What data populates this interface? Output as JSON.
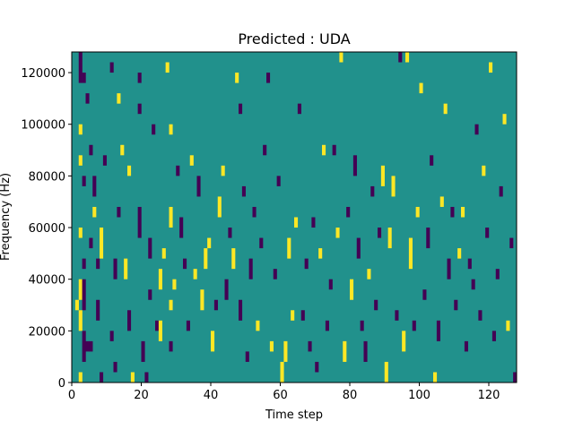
{
  "chart_data": {
    "type": "heatmap",
    "title": "Predicted : UDA",
    "xlabel": "Time step",
    "ylabel": "Frequency (Hz)",
    "xlim": [
      0,
      128
    ],
    "ylim": [
      0,
      128000
    ],
    "x_ticks": [
      0,
      20,
      40,
      60,
      80,
      100,
      120
    ],
    "y_ticks": [
      0,
      20000,
      40000,
      60000,
      80000,
      100000,
      120000
    ],
    "grid": false,
    "legend": "none",
    "value_levels": [
      -1,
      0,
      1
    ],
    "colors": {
      "-1": "#440154",
      "0": "#21918c",
      "1": "#fde725"
    },
    "background_value": 0,
    "bin_width": 1,
    "bin_height": 4000,
    "cells": [
      {
        "t": 2,
        "f_start": 124000,
        "f_end": 128000,
        "v": -1
      },
      {
        "t": 2,
        "f_start": 116000,
        "f_end": 124000,
        "v": -1
      },
      {
        "t": 3,
        "f_start": 116000,
        "f_end": 120000,
        "v": -1
      },
      {
        "t": 4,
        "f_start": 108000,
        "f_end": 112000,
        "v": -1
      },
      {
        "t": 2,
        "f_start": 96000,
        "f_end": 100000,
        "v": 1
      },
      {
        "t": 2,
        "f_start": 84000,
        "f_end": 88000,
        "v": 1
      },
      {
        "t": 3,
        "f_start": 76000,
        "f_end": 80000,
        "v": -1
      },
      {
        "t": 5,
        "f_start": 88000,
        "f_end": 92000,
        "v": -1
      },
      {
        "t": 6,
        "f_start": 72000,
        "f_end": 80000,
        "v": -1
      },
      {
        "t": 6,
        "f_start": 64000,
        "f_end": 68000,
        "v": 1
      },
      {
        "t": 5,
        "f_start": 52000,
        "f_end": 56000,
        "v": -1
      },
      {
        "t": 8,
        "f_start": 48000,
        "f_end": 60000,
        "v": 1
      },
      {
        "t": 2,
        "f_start": 56000,
        "f_end": 60000,
        "v": 1
      },
      {
        "t": 3,
        "f_start": 44000,
        "f_end": 48000,
        "v": -1
      },
      {
        "t": 2,
        "f_start": 32000,
        "f_end": 40000,
        "v": 1
      },
      {
        "t": 3,
        "f_start": 28000,
        "f_end": 40000,
        "v": -1
      },
      {
        "t": 1,
        "f_start": 28000,
        "f_end": 32000,
        "v": 1
      },
      {
        "t": 2,
        "f_start": 20000,
        "f_end": 28000,
        "v": 1
      },
      {
        "t": 3,
        "f_start": 8000,
        "f_end": 20000,
        "v": -1
      },
      {
        "t": 4,
        "f_start": 12000,
        "f_end": 16000,
        "v": -1
      },
      {
        "t": 5,
        "f_start": 12000,
        "f_end": 16000,
        "v": -1
      },
      {
        "t": 2,
        "f_start": 0,
        "f_end": 4000,
        "v": 1
      },
      {
        "t": 8,
        "f_start": 0,
        "f_end": 4000,
        "v": -1
      },
      {
        "t": 7,
        "f_start": 24000,
        "f_end": 32000,
        "v": -1
      },
      {
        "t": 7,
        "f_start": 44000,
        "f_end": 48000,
        "v": -1
      },
      {
        "t": 9,
        "f_start": 84000,
        "f_end": 88000,
        "v": -1
      },
      {
        "t": 11,
        "f_start": 120000,
        "f_end": 124000,
        "v": -1
      },
      {
        "t": 13,
        "f_start": 108000,
        "f_end": 112000,
        "v": 1
      },
      {
        "t": 14,
        "f_start": 88000,
        "f_end": 92000,
        "v": 1
      },
      {
        "t": 13,
        "f_start": 64000,
        "f_end": 68000,
        "v": -1
      },
      {
        "t": 12,
        "f_start": 40000,
        "f_end": 48000,
        "v": -1
      },
      {
        "t": 11,
        "f_start": 16000,
        "f_end": 20000,
        "v": -1
      },
      {
        "t": 12,
        "f_start": 4000,
        "f_end": 8000,
        "v": -1
      },
      {
        "t": 15,
        "f_start": 40000,
        "f_end": 48000,
        "v": 1
      },
      {
        "t": 16,
        "f_start": 20000,
        "f_end": 28000,
        "v": -1
      },
      {
        "t": 17,
        "f_start": 0,
        "f_end": 4000,
        "v": 1
      },
      {
        "t": 16,
        "f_start": 80000,
        "f_end": 84000,
        "v": 1
      },
      {
        "t": 19,
        "f_start": 116000,
        "f_end": 120000,
        "v": -1
      },
      {
        "t": 19,
        "f_start": 104000,
        "f_end": 108000,
        "v": -1
      },
      {
        "t": 19,
        "f_start": 56000,
        "f_end": 68000,
        "v": -1
      },
      {
        "t": 20,
        "f_start": 8000,
        "f_end": 16000,
        "v": -1
      },
      {
        "t": 21,
        "f_start": 0,
        "f_end": 4000,
        "v": -1
      },
      {
        "t": 22,
        "f_start": 48000,
        "f_end": 56000,
        "v": -1
      },
      {
        "t": 22,
        "f_start": 32000,
        "f_end": 36000,
        "v": -1
      },
      {
        "t": 23,
        "f_start": 96000,
        "f_end": 100000,
        "v": -1
      },
      {
        "t": 24,
        "f_start": 20000,
        "f_end": 24000,
        "v": -1
      },
      {
        "t": 25,
        "f_start": 16000,
        "f_end": 24000,
        "v": 1
      },
      {
        "t": 25,
        "f_start": 36000,
        "f_end": 44000,
        "v": 1
      },
      {
        "t": 26,
        "f_start": 48000,
        "f_end": 52000,
        "v": 1
      },
      {
        "t": 27,
        "f_start": 120000,
        "f_end": 124000,
        "v": 1
      },
      {
        "t": 28,
        "f_start": 96000,
        "f_end": 100000,
        "v": 1
      },
      {
        "t": 28,
        "f_start": 60000,
        "f_end": 68000,
        "v": 1
      },
      {
        "t": 28,
        "f_start": 28000,
        "f_end": 32000,
        "v": 1
      },
      {
        "t": 28,
        "f_start": 12000,
        "f_end": 16000,
        "v": -1
      },
      {
        "t": 29,
        "f_start": 36000,
        "f_end": 40000,
        "v": 1
      },
      {
        "t": 30,
        "f_start": 80000,
        "f_end": 84000,
        "v": -1
      },
      {
        "t": 31,
        "f_start": 56000,
        "f_end": 64000,
        "v": -1
      },
      {
        "t": 32,
        "f_start": 44000,
        "f_end": 48000,
        "v": -1
      },
      {
        "t": 33,
        "f_start": 20000,
        "f_end": 24000,
        "v": -1
      },
      {
        "t": 34,
        "f_start": 84000,
        "f_end": 88000,
        "v": 1
      },
      {
        "t": 35,
        "f_start": 40000,
        "f_end": 44000,
        "v": 1
      },
      {
        "t": 36,
        "f_start": 72000,
        "f_end": 80000,
        "v": -1
      },
      {
        "t": 37,
        "f_start": 28000,
        "f_end": 36000,
        "v": 1
      },
      {
        "t": 38,
        "f_start": 44000,
        "f_end": 52000,
        "v": 1
      },
      {
        "t": 39,
        "f_start": 52000,
        "f_end": 56000,
        "v": 1
      },
      {
        "t": 40,
        "f_start": 12000,
        "f_end": 20000,
        "v": 1
      },
      {
        "t": 41,
        "f_start": 28000,
        "f_end": 32000,
        "v": -1
      },
      {
        "t": 42,
        "f_start": 64000,
        "f_end": 72000,
        "v": 1
      },
      {
        "t": 43,
        "f_start": 80000,
        "f_end": 84000,
        "v": 1
      },
      {
        "t": 44,
        "f_start": 32000,
        "f_end": 40000,
        "v": -1
      },
      {
        "t": 45,
        "f_start": 56000,
        "f_end": 60000,
        "v": -1
      },
      {
        "t": 46,
        "f_start": 44000,
        "f_end": 52000,
        "v": 1
      },
      {
        "t": 47,
        "f_start": 116000,
        "f_end": 120000,
        "v": 1
      },
      {
        "t": 48,
        "f_start": 104000,
        "f_end": 108000,
        "v": -1
      },
      {
        "t": 48,
        "f_start": 24000,
        "f_end": 32000,
        "v": -1
      },
      {
        "t": 49,
        "f_start": 72000,
        "f_end": 76000,
        "v": -1
      },
      {
        "t": 50,
        "f_start": 8000,
        "f_end": 12000,
        "v": -1
      },
      {
        "t": 51,
        "f_start": 40000,
        "f_end": 48000,
        "v": -1
      },
      {
        "t": 52,
        "f_start": 64000,
        "f_end": 68000,
        "v": -1
      },
      {
        "t": 53,
        "f_start": 20000,
        "f_end": 24000,
        "v": 1
      },
      {
        "t": 54,
        "f_start": 52000,
        "f_end": 56000,
        "v": -1
      },
      {
        "t": 55,
        "f_start": 88000,
        "f_end": 92000,
        "v": -1
      },
      {
        "t": 56,
        "f_start": 116000,
        "f_end": 120000,
        "v": -1
      },
      {
        "t": 57,
        "f_start": 12000,
        "f_end": 16000,
        "v": 1
      },
      {
        "t": 58,
        "f_start": 40000,
        "f_end": 44000,
        "v": -1
      },
      {
        "t": 59,
        "f_start": 76000,
        "f_end": 80000,
        "v": -1
      },
      {
        "t": 60,
        "f_start": 0,
        "f_end": 8000,
        "v": 1
      },
      {
        "t": 61,
        "f_start": 8000,
        "f_end": 16000,
        "v": 1
      },
      {
        "t": 62,
        "f_start": 48000,
        "f_end": 56000,
        "v": 1
      },
      {
        "t": 63,
        "f_start": 24000,
        "f_end": 28000,
        "v": 1
      },
      {
        "t": 64,
        "f_start": 60000,
        "f_end": 64000,
        "v": 1
      },
      {
        "t": 65,
        "f_start": 104000,
        "f_end": 108000,
        "v": -1
      },
      {
        "t": 66,
        "f_start": 24000,
        "f_end": 28000,
        "v": -1
      },
      {
        "t": 67,
        "f_start": 44000,
        "f_end": 48000,
        "v": -1
      },
      {
        "t": 68,
        "f_start": 12000,
        "f_end": 16000,
        "v": -1
      },
      {
        "t": 69,
        "f_start": 60000,
        "f_end": 64000,
        "v": -1
      },
      {
        "t": 70,
        "f_start": 4000,
        "f_end": 8000,
        "v": -1
      },
      {
        "t": 71,
        "f_start": 48000,
        "f_end": 52000,
        "v": 1
      },
      {
        "t": 72,
        "f_start": 88000,
        "f_end": 92000,
        "v": 1
      },
      {
        "t": 73,
        "f_start": 20000,
        "f_end": 24000,
        "v": -1
      },
      {
        "t": 74,
        "f_start": 36000,
        "f_end": 40000,
        "v": -1
      },
      {
        "t": 75,
        "f_start": 88000,
        "f_end": 92000,
        "v": -1
      },
      {
        "t": 76,
        "f_start": 56000,
        "f_end": 60000,
        "v": 1
      },
      {
        "t": 77,
        "f_start": 124000,
        "f_end": 128000,
        "v": 1
      },
      {
        "t": 78,
        "f_start": 8000,
        "f_end": 16000,
        "v": 1
      },
      {
        "t": 79,
        "f_start": 64000,
        "f_end": 68000,
        "v": -1
      },
      {
        "t": 80,
        "f_start": 32000,
        "f_end": 40000,
        "v": 1
      },
      {
        "t": 81,
        "f_start": 80000,
        "f_end": 88000,
        "v": -1
      },
      {
        "t": 82,
        "f_start": 48000,
        "f_end": 56000,
        "v": -1
      },
      {
        "t": 83,
        "f_start": 20000,
        "f_end": 24000,
        "v": -1
      },
      {
        "t": 84,
        "f_start": 8000,
        "f_end": 16000,
        "v": -1
      },
      {
        "t": 85,
        "f_start": 40000,
        "f_end": 44000,
        "v": 1
      },
      {
        "t": 86,
        "f_start": 72000,
        "f_end": 76000,
        "v": -1
      },
      {
        "t": 87,
        "f_start": 28000,
        "f_end": 32000,
        "v": -1
      },
      {
        "t": 88,
        "f_start": 56000,
        "f_end": 60000,
        "v": -1
      },
      {
        "t": 89,
        "f_start": 76000,
        "f_end": 84000,
        "v": 1
      },
      {
        "t": 90,
        "f_start": 0,
        "f_end": 8000,
        "v": 1
      },
      {
        "t": 91,
        "f_start": 52000,
        "f_end": 60000,
        "v": 1
      },
      {
        "t": 92,
        "f_start": 72000,
        "f_end": 80000,
        "v": 1
      },
      {
        "t": 93,
        "f_start": 24000,
        "f_end": 28000,
        "v": -1
      },
      {
        "t": 94,
        "f_start": 124000,
        "f_end": 128000,
        "v": -1
      },
      {
        "t": 95,
        "f_start": 12000,
        "f_end": 20000,
        "v": 1
      },
      {
        "t": 96,
        "f_start": 124000,
        "f_end": 128000,
        "v": 1
      },
      {
        "t": 97,
        "f_start": 44000,
        "f_end": 56000,
        "v": 1
      },
      {
        "t": 98,
        "f_start": 20000,
        "f_end": 24000,
        "v": -1
      },
      {
        "t": 99,
        "f_start": 64000,
        "f_end": 68000,
        "v": 1
      },
      {
        "t": 100,
        "f_start": 112000,
        "f_end": 116000,
        "v": 1
      },
      {
        "t": 101,
        "f_start": 32000,
        "f_end": 36000,
        "v": -1
      },
      {
        "t": 102,
        "f_start": 52000,
        "f_end": 60000,
        "v": -1
      },
      {
        "t": 103,
        "f_start": 84000,
        "f_end": 88000,
        "v": -1
      },
      {
        "t": 104,
        "f_start": 0,
        "f_end": 4000,
        "v": 1
      },
      {
        "t": 105,
        "f_start": 16000,
        "f_end": 24000,
        "v": -1
      },
      {
        "t": 106,
        "f_start": 68000,
        "f_end": 72000,
        "v": 1
      },
      {
        "t": 107,
        "f_start": 104000,
        "f_end": 108000,
        "v": 1
      },
      {
        "t": 108,
        "f_start": 40000,
        "f_end": 48000,
        "v": -1
      },
      {
        "t": 109,
        "f_start": 64000,
        "f_end": 68000,
        "v": -1
      },
      {
        "t": 110,
        "f_start": 28000,
        "f_end": 32000,
        "v": -1
      },
      {
        "t": 111,
        "f_start": 48000,
        "f_end": 52000,
        "v": 1
      },
      {
        "t": 112,
        "f_start": 64000,
        "f_end": 68000,
        "v": 1
      },
      {
        "t": 113,
        "f_start": 12000,
        "f_end": 16000,
        "v": -1
      },
      {
        "t": 114,
        "f_start": 44000,
        "f_end": 48000,
        "v": -1
      },
      {
        "t": 115,
        "f_start": 36000,
        "f_end": 40000,
        "v": -1
      },
      {
        "t": 116,
        "f_start": 96000,
        "f_end": 100000,
        "v": -1
      },
      {
        "t": 117,
        "f_start": 24000,
        "f_end": 28000,
        "v": -1
      },
      {
        "t": 118,
        "f_start": 80000,
        "f_end": 84000,
        "v": 1
      },
      {
        "t": 119,
        "f_start": 56000,
        "f_end": 60000,
        "v": -1
      },
      {
        "t": 120,
        "f_start": 120000,
        "f_end": 124000,
        "v": 1
      },
      {
        "t": 121,
        "f_start": 16000,
        "f_end": 20000,
        "v": -1
      },
      {
        "t": 122,
        "f_start": 40000,
        "f_end": 44000,
        "v": -1
      },
      {
        "t": 123,
        "f_start": 72000,
        "f_end": 76000,
        "v": -1
      },
      {
        "t": 124,
        "f_start": 100000,
        "f_end": 104000,
        "v": 1
      },
      {
        "t": 125,
        "f_start": 20000,
        "f_end": 24000,
        "v": 1
      },
      {
        "t": 126,
        "f_start": 52000,
        "f_end": 56000,
        "v": -1
      },
      {
        "t": 127,
        "f_start": 0,
        "f_end": 4000,
        "v": -1
      }
    ]
  }
}
